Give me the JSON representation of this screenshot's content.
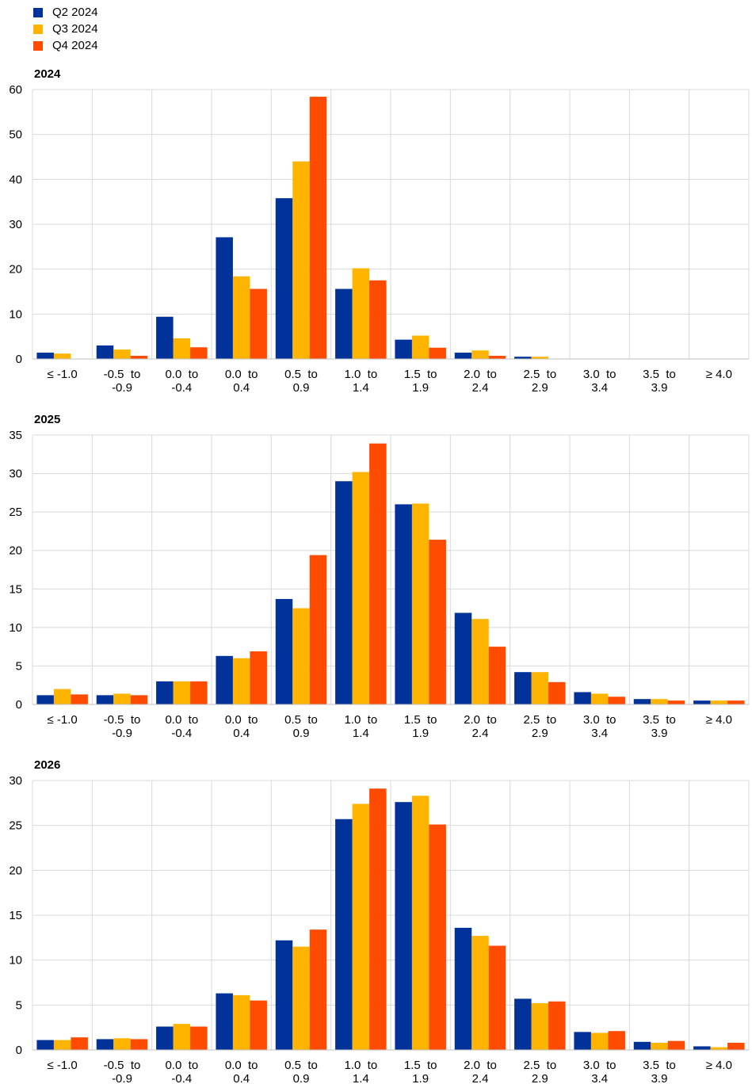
{
  "legend": [
    {
      "label": "Q2 2024",
      "color": "#003299"
    },
    {
      "label": "Q3 2024",
      "color": "#ffb400"
    },
    {
      "label": "Q4 2024",
      "color": "#ff4b00"
    }
  ],
  "chart_data": [
    {
      "type": "bar",
      "title": "2024",
      "categories": [
        [
          "≤ -1.0"
        ],
        [
          "-0.5  to",
          "-0.9"
        ],
        [
          "0.0  to",
          "-0.4"
        ],
        [
          "0.0  to",
          "0.4"
        ],
        [
          "0.5  to",
          "0.9"
        ],
        [
          "1.0  to",
          "1.4"
        ],
        [
          "1.5  to",
          "1.9"
        ],
        [
          "2.0  to",
          "2.4"
        ],
        [
          "2.5  to",
          "2.9"
        ],
        [
          "3.0  to",
          "3.4"
        ],
        [
          "3.5  to",
          "3.9"
        ],
        [
          "≥ 4.0"
        ]
      ],
      "ylim": [
        0,
        60
      ],
      "yticks": [
        0,
        10,
        20,
        30,
        40,
        50,
        60
      ],
      "grid": true,
      "series": [
        {
          "name": "Q2 2024",
          "color": "#003299",
          "values": [
            1.4,
            3.0,
            9.4,
            27.1,
            35.8,
            15.6,
            4.3,
            1.4,
            0.5,
            0,
            0,
            0
          ]
        },
        {
          "name": "Q3 2024",
          "color": "#ffb400",
          "values": [
            1.2,
            2.1,
            4.6,
            18.4,
            44.0,
            20.2,
            5.2,
            1.9,
            0.5,
            0,
            0,
            0
          ]
        },
        {
          "name": "Q4 2024",
          "color": "#ff4b00",
          "values": [
            0,
            0.7,
            2.6,
            15.6,
            58.4,
            17.5,
            2.5,
            0.7,
            0,
            0,
            0,
            0
          ]
        }
      ]
    },
    {
      "type": "bar",
      "title": "2025",
      "categories": [
        [
          "≤ -1.0"
        ],
        [
          "-0.5  to",
          "-0.9"
        ],
        [
          "0.0  to",
          "-0.4"
        ],
        [
          "0.0  to",
          "0.4"
        ],
        [
          "0.5  to",
          "0.9"
        ],
        [
          "1.0  to",
          "1.4"
        ],
        [
          "1.5  to",
          "1.9"
        ],
        [
          "2.0  to",
          "2.4"
        ],
        [
          "2.5  to",
          "2.9"
        ],
        [
          "3.0  to",
          "3.4"
        ],
        [
          "3.5  to",
          "3.9"
        ],
        [
          "≥ 4.0"
        ]
      ],
      "ylim": [
        0,
        35
      ],
      "yticks": [
        0,
        5,
        10,
        15,
        20,
        25,
        30,
        35
      ],
      "grid": true,
      "series": [
        {
          "name": "Q2 2024",
          "color": "#003299",
          "values": [
            1.2,
            1.2,
            3.0,
            6.3,
            13.7,
            29.0,
            26.0,
            11.9,
            4.2,
            1.6,
            0.7,
            0.5
          ]
        },
        {
          "name": "Q3 2024",
          "color": "#ffb400",
          "values": [
            2.0,
            1.4,
            3.0,
            6.0,
            12.5,
            30.2,
            26.1,
            11.1,
            4.2,
            1.4,
            0.7,
            0.5
          ]
        },
        {
          "name": "Q4 2024",
          "color": "#ff4b00",
          "values": [
            1.3,
            1.2,
            3.0,
            6.9,
            19.4,
            33.9,
            21.4,
            7.5,
            2.9,
            1.0,
            0.5,
            0.5
          ]
        }
      ]
    },
    {
      "type": "bar",
      "title": "2026",
      "categories": [
        [
          "≤ -1.0"
        ],
        [
          "-0.5  to",
          "-0.9"
        ],
        [
          "0.0  to",
          "-0.4"
        ],
        [
          "0.0  to",
          "0.4"
        ],
        [
          "0.5  to",
          "0.9"
        ],
        [
          "1.0  to",
          "1.4"
        ],
        [
          "1.5  to",
          "1.9"
        ],
        [
          "2.0  to",
          "2.4"
        ],
        [
          "2.5  to",
          "2.9"
        ],
        [
          "3.0  to",
          "3.4"
        ],
        [
          "3.5  to",
          "3.9"
        ],
        [
          "≥ 4.0"
        ]
      ],
      "ylim": [
        0,
        30
      ],
      "yticks": [
        0,
        5,
        10,
        15,
        20,
        25,
        30
      ],
      "grid": true,
      "series": [
        {
          "name": "Q2 2024",
          "color": "#003299",
          "values": [
            1.1,
            1.2,
            2.6,
            6.3,
            12.2,
            25.7,
            27.6,
            13.6,
            5.7,
            2.0,
            0.9,
            0.4
          ]
        },
        {
          "name": "Q3 2024",
          "color": "#ffb400",
          "values": [
            1.1,
            1.3,
            2.9,
            6.1,
            11.5,
            27.4,
            28.3,
            12.7,
            5.2,
            1.9,
            0.8,
            0.3
          ]
        },
        {
          "name": "Q4 2024",
          "color": "#ff4b00",
          "values": [
            1.4,
            1.2,
            2.6,
            5.5,
            13.4,
            29.1,
            25.1,
            11.6,
            5.4,
            2.1,
            1.0,
            0.8
          ]
        }
      ]
    }
  ]
}
